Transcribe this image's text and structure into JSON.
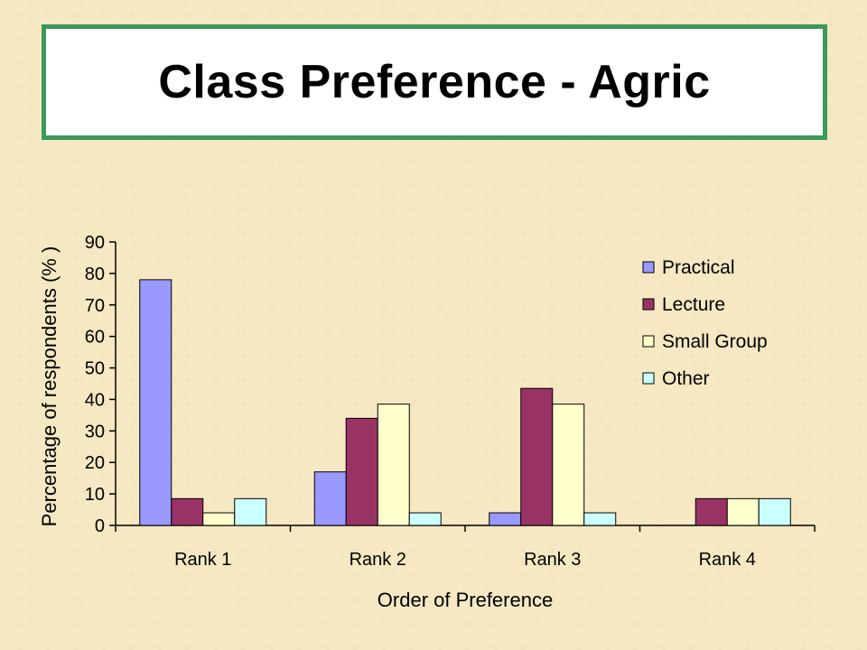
{
  "slide": {
    "title": "Class Preference - Agric"
  },
  "chart_data": {
    "type": "bar",
    "title": "",
    "xlabel": "Order of Preference",
    "ylabel": "Percentage of respondents (% )",
    "categories": [
      "Rank 1",
      "Rank 2",
      "Rank 3",
      "Rank 4"
    ],
    "ylim": [
      0,
      90
    ],
    "yticks": [
      0,
      10,
      20,
      30,
      40,
      50,
      60,
      70,
      80,
      90
    ],
    "grid": false,
    "legend_position": "top-right",
    "series": [
      {
        "name": "Practical",
        "color": "#9999ff",
        "values": [
          78,
          17,
          4,
          0
        ]
      },
      {
        "name": "Lecture",
        "color": "#993366",
        "values": [
          8.5,
          34,
          43.5,
          8.5
        ]
      },
      {
        "name": "Small Group",
        "color": "#ffffcc",
        "values": [
          4,
          38.5,
          38.5,
          8.5
        ]
      },
      {
        "name": "Other",
        "color": "#ccffff",
        "values": [
          8.5,
          4,
          4,
          8.5
        ]
      }
    ]
  }
}
